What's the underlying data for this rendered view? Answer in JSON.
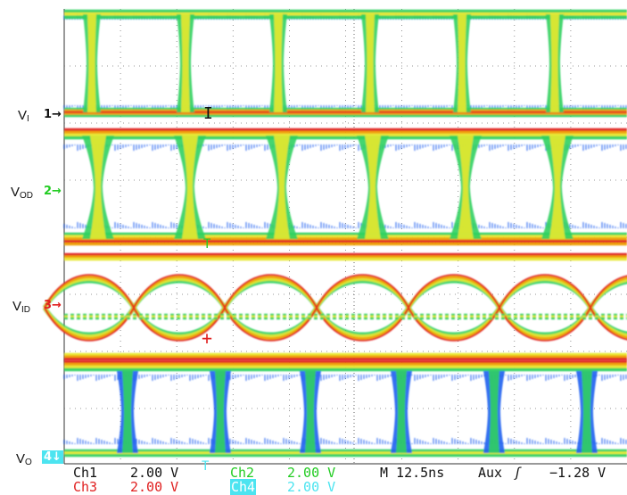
{
  "channels": [
    {
      "label_main": "V",
      "label_sub": "I",
      "number": "1",
      "arrow": "→",
      "color": "#111111"
    },
    {
      "label_main": "V",
      "label_sub": "OD",
      "number": "2",
      "arrow": "→",
      "color": "#22cc22"
    },
    {
      "label_main": "V",
      "label_sub": "ID",
      "number": "3",
      "arrow": "→",
      "color": "#e02020"
    },
    {
      "label_main": "V",
      "label_sub": "O",
      "number": "4",
      "arrow": "↓",
      "color": "#4ce4f0"
    }
  ],
  "readout": {
    "ch1": {
      "name": "Ch1",
      "value": "2.00 V",
      "color": "#111111"
    },
    "ch2": {
      "name": "Ch2",
      "value": "2.00 V",
      "color": "#22cc22"
    },
    "ch3": {
      "name": "Ch3",
      "value": "2.00 V",
      "color": "#e02020"
    },
    "ch4": {
      "name": "Ch4",
      "value": "2.00 V",
      "color": "#4ce4f0"
    },
    "timebase": "M 12.5ns",
    "trigger_source": "Aux",
    "trigger_symbol": "ʃ",
    "trigger_level": "−1.28 V"
  },
  "colors": {
    "hot": "#e02020",
    "warm": "#f0a000",
    "mid": "#e8e830",
    "cool": "#30d060",
    "cold": "#2060f0"
  }
}
